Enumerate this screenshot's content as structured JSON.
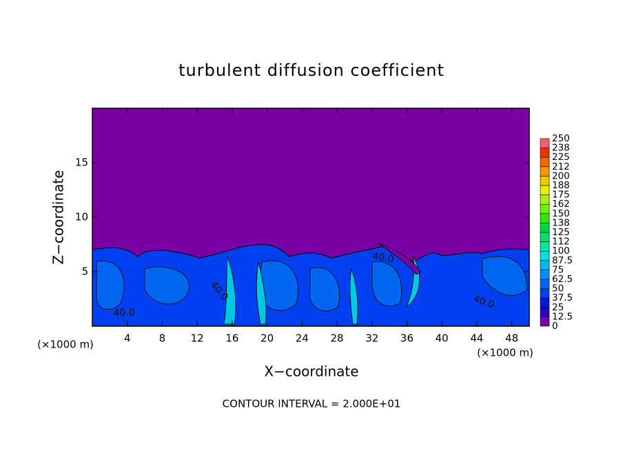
{
  "chart_data": {
    "type": "contour",
    "title": "turbulent diffusion coefficient",
    "xlabel": "X−coordinate",
    "ylabel": "Z−coordinate",
    "x_unit_left": "(×1000 m)",
    "x_unit_right": "(×1000 m)",
    "footer": "CONTOUR INTERVAL = 2.000E+01",
    "xlim": [
      0,
      50
    ],
    "xticks": [
      4,
      8,
      12,
      16,
      20,
      24,
      28,
      32,
      36,
      40,
      44,
      48
    ],
    "ylim": [
      0,
      20
    ],
    "yticks": [
      5,
      10,
      15
    ],
    "contour_labels": [
      "40.0",
      "40.0",
      "40.0",
      "40.0"
    ],
    "colorbar": {
      "levels": [
        0,
        12.5,
        25,
        37.5,
        50,
        62.5,
        75,
        87.5,
        100,
        112,
        125,
        138,
        150,
        162,
        175,
        188,
        200,
        212,
        225,
        238,
        250
      ],
      "colors": [
        "#7a00a6",
        "#2a00b8",
        "#0018d8",
        "#0040f0",
        "#0068f0",
        "#0090f0",
        "#00b8f0",
        "#00e0e0",
        "#00e8a8",
        "#00e070",
        "#00d838",
        "#30e800",
        "#70f000",
        "#b0f000",
        "#e8f000",
        "#f0c800",
        "#f09800",
        "#f06800",
        "#f03000",
        "#f06070"
      ]
    }
  }
}
